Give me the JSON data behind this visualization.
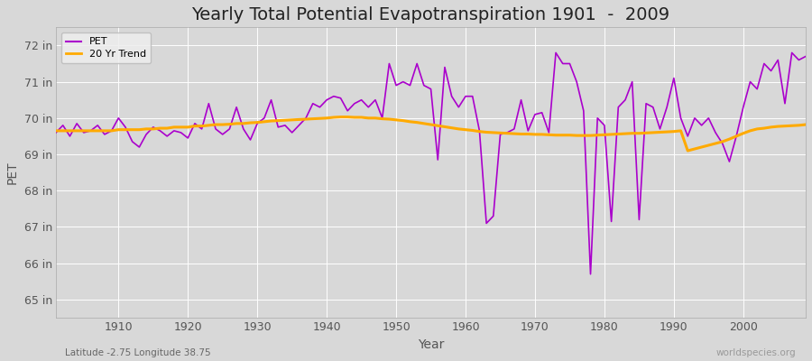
{
  "title": "Yearly Total Potential Evapotranspiration 1901  -  2009",
  "xlabel": "Year",
  "ylabel": "PET",
  "subtitle": "Latitude -2.75 Longitude 38.75",
  "watermark": "worldspecies.org",
  "ylim": [
    64.5,
    72.5
  ],
  "yticks": [
    65,
    66,
    67,
    68,
    69,
    70,
    71,
    72
  ],
  "ytick_labels": [
    "65 in",
    "66 in",
    "67 in",
    "68 in",
    "69 in",
    "70 in",
    "71 in",
    "72 in"
  ],
  "xticks": [
    1910,
    1920,
    1930,
    1940,
    1950,
    1960,
    1970,
    1980,
    1990,
    2000
  ],
  "years": [
    1901,
    1902,
    1903,
    1904,
    1905,
    1906,
    1907,
    1908,
    1909,
    1910,
    1911,
    1912,
    1913,
    1914,
    1915,
    1916,
    1917,
    1918,
    1919,
    1920,
    1921,
    1922,
    1923,
    1924,
    1925,
    1926,
    1927,
    1928,
    1929,
    1930,
    1931,
    1932,
    1933,
    1934,
    1935,
    1936,
    1937,
    1938,
    1939,
    1940,
    1941,
    1942,
    1943,
    1944,
    1945,
    1946,
    1947,
    1948,
    1949,
    1950,
    1951,
    1952,
    1953,
    1954,
    1955,
    1956,
    1957,
    1958,
    1959,
    1960,
    1961,
    1962,
    1963,
    1964,
    1965,
    1966,
    1967,
    1968,
    1969,
    1970,
    1971,
    1972,
    1973,
    1974,
    1975,
    1976,
    1977,
    1978,
    1979,
    1980,
    1981,
    1982,
    1983,
    1984,
    1985,
    1986,
    1987,
    1988,
    1989,
    1990,
    1991,
    1992,
    1993,
    1994,
    1995,
    1996,
    1997,
    1998,
    1999,
    2000,
    2001,
    2002,
    2003,
    2004,
    2005,
    2006,
    2007,
    2008,
    2009
  ],
  "pet": [
    69.6,
    69.8,
    69.5,
    69.85,
    69.6,
    69.65,
    69.8,
    69.55,
    69.65,
    70.0,
    69.75,
    69.35,
    69.2,
    69.55,
    69.75,
    69.65,
    69.5,
    69.65,
    69.6,
    69.45,
    69.85,
    69.7,
    70.4,
    69.7,
    69.55,
    69.7,
    70.3,
    69.7,
    69.4,
    69.85,
    70.0,
    70.5,
    69.75,
    69.8,
    69.6,
    69.8,
    70.0,
    70.4,
    70.3,
    70.5,
    70.6,
    70.55,
    70.2,
    70.4,
    70.5,
    70.3,
    70.5,
    70.0,
    71.5,
    70.9,
    71.0,
    70.9,
    71.5,
    70.9,
    70.8,
    68.85,
    71.4,
    70.6,
    70.3,
    70.6,
    70.6,
    69.65,
    67.1,
    67.3,
    69.55,
    69.6,
    69.7,
    70.5,
    69.65,
    70.1,
    70.15,
    69.6,
    71.8,
    71.5,
    71.5,
    71.0,
    70.2,
    65.7,
    70.0,
    69.8,
    67.15,
    70.3,
    70.5,
    71.0,
    67.2,
    70.4,
    70.3,
    69.7,
    70.3,
    71.1,
    70.0,
    69.5,
    70.0,
    69.8,
    70.0,
    69.6,
    69.3,
    68.8,
    69.5,
    70.3,
    71.0,
    70.8,
    71.5,
    71.3,
    71.6,
    70.4,
    71.8,
    71.6,
    71.7
  ],
  "trend": [
    69.65,
    69.65,
    69.65,
    69.65,
    69.65,
    69.65,
    69.65,
    69.65,
    69.65,
    69.68,
    69.68,
    69.68,
    69.68,
    69.7,
    69.7,
    69.72,
    69.72,
    69.75,
    69.75,
    69.75,
    69.78,
    69.78,
    69.8,
    69.82,
    69.82,
    69.83,
    69.85,
    69.85,
    69.87,
    69.88,
    69.9,
    69.92,
    69.93,
    69.94,
    69.95,
    69.96,
    69.97,
    69.98,
    69.99,
    70.0,
    70.02,
    70.03,
    70.03,
    70.02,
    70.02,
    70.0,
    70.0,
    69.98,
    69.97,
    69.95,
    69.93,
    69.9,
    69.88,
    69.85,
    69.82,
    69.79,
    69.76,
    69.73,
    69.7,
    69.68,
    69.66,
    69.63,
    69.61,
    69.6,
    69.59,
    69.58,
    69.57,
    69.56,
    69.56,
    69.55,
    69.55,
    69.54,
    69.53,
    69.53,
    69.53,
    69.52,
    69.52,
    69.52,
    69.53,
    69.54,
    69.55,
    69.56,
    69.57,
    69.58,
    69.58,
    69.59,
    69.6,
    69.61,
    69.62,
    69.63,
    69.65,
    69.1,
    69.15,
    69.2,
    69.25,
    69.3,
    69.35,
    69.42,
    69.5,
    69.58,
    69.65,
    69.7,
    69.72,
    69.75,
    69.77,
    69.78,
    69.79,
    69.8,
    69.82
  ],
  "pet_color": "#aa00cc",
  "trend_color": "#ffaa00",
  "fig_bg_color": "#d8d8d8",
  "plot_bg_color": "#d8d8d8",
  "grid_color": "#ffffff",
  "title_fontsize": 14,
  "tick_fontsize": 9,
  "label_fontsize": 10
}
